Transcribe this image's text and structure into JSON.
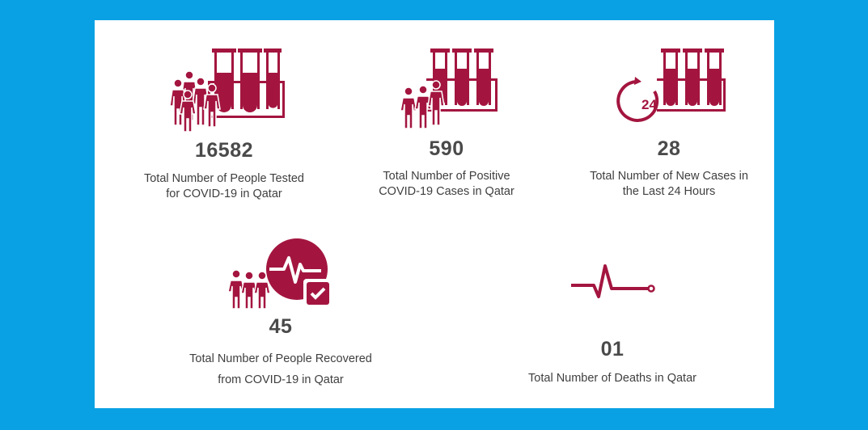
{
  "theme": {
    "background": "#0aa1e4",
    "card": "#ffffff",
    "accent": "#a3153f",
    "text": "#3f3f3f"
  },
  "stats": {
    "tested": {
      "icon": "people-test-tubes-icon",
      "value": "16582",
      "label_line1": "Total Number of People Tested",
      "label_line2": "for COVID-19 in Qatar"
    },
    "positive": {
      "icon": "family-test-tubes-icon",
      "value": "590",
      "label_line1": "Total Number of Positive",
      "label_line2": "COVID-19 Cases in Qatar"
    },
    "new_cases": {
      "icon": "24-hour-test-tubes-icon",
      "value": "28",
      "label_line1": "Total Number of New Cases in",
      "label_line2": "the Last 24 Hours"
    },
    "recovered": {
      "icon": "family-heartbeat-check-icon",
      "value": "45",
      "label_line1": "Total Number of People Recovered",
      "label_line2": "from COVID-19 in Qatar"
    },
    "deaths": {
      "icon": "flatline-pulse-icon",
      "value": "01",
      "label_line1": "Total Number of Deaths in Qatar"
    }
  }
}
